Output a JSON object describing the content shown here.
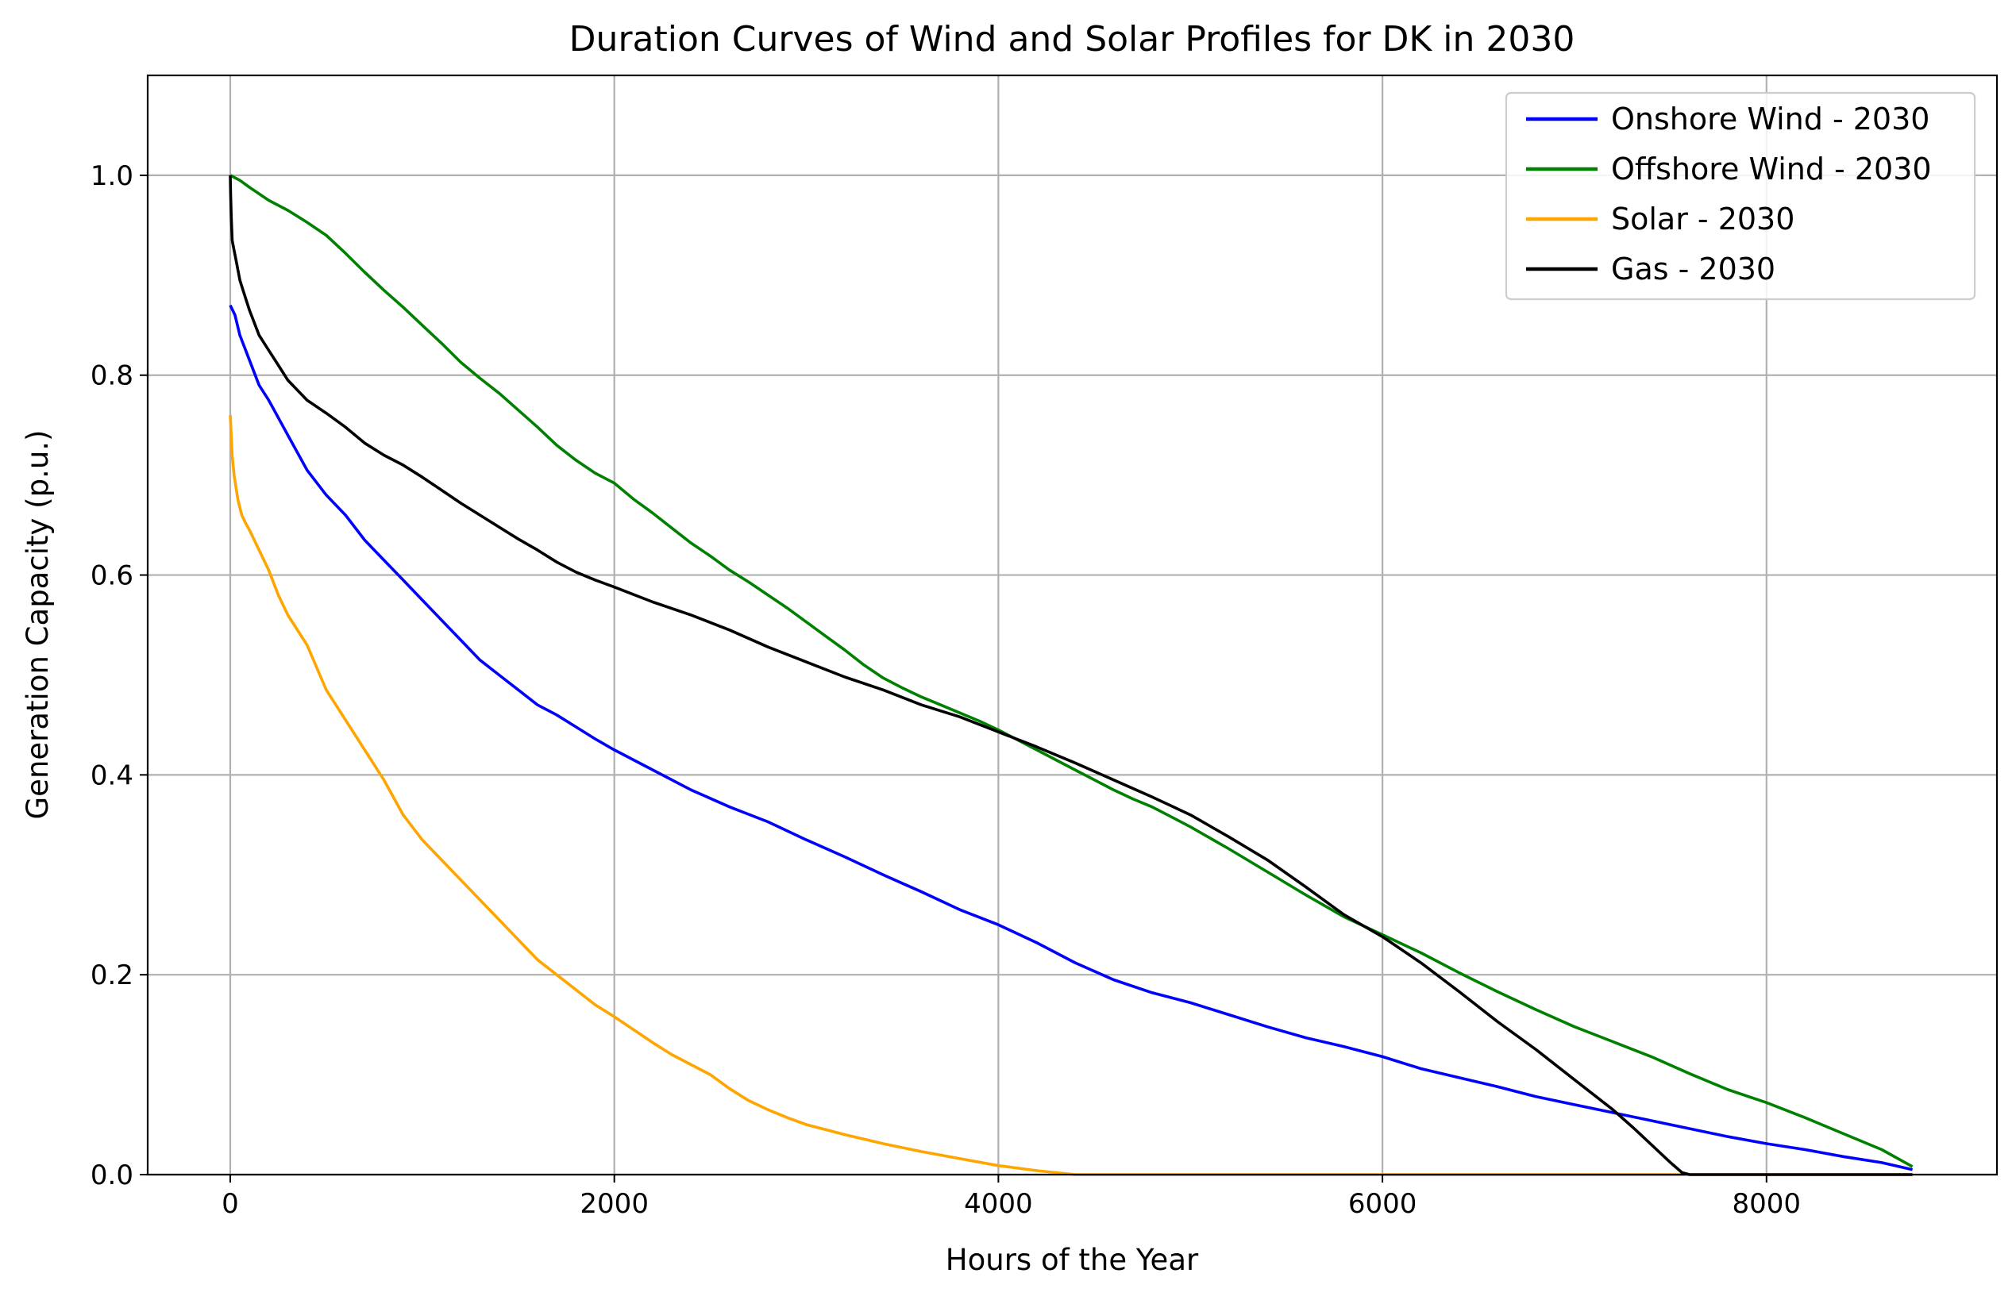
{
  "chart_data": {
    "type": "line",
    "title": "Duration Curves of Wind and Solar Profiles for DK in 2030",
    "xlabel": "Hours of the Year",
    "ylabel": "Generation Capacity (p.u.)",
    "xlim": [
      -430,
      9200
    ],
    "ylim": [
      0,
      1.1
    ],
    "xticks": [
      0,
      2000,
      4000,
      6000,
      8000
    ],
    "xtick_labels": [
      "0",
      "2000",
      "4000",
      "6000",
      "8000"
    ],
    "yticks": [
      0,
      0.2,
      0.4,
      0.6,
      0.8,
      1.0
    ],
    "ytick_labels": [
      "0.0",
      "0.2",
      "0.4",
      "0.6",
      "0.8",
      "1.0"
    ],
    "grid": true,
    "legend_position": "top-right",
    "series": [
      {
        "name": "Onshore Wind - 2030",
        "color": "#0000ff",
        "x": [
          0,
          25,
          50,
          100,
          150,
          200,
          300,
          400,
          500,
          600,
          700,
          800,
          900,
          1000,
          1100,
          1200,
          1300,
          1400,
          1500,
          1600,
          1700,
          1800,
          1900,
          2000,
          2200,
          2400,
          2600,
          2800,
          3000,
          3200,
          3400,
          3600,
          3800,
          4000,
          4200,
          4400,
          4600,
          4800,
          5000,
          5200,
          5400,
          5600,
          5800,
          6000,
          6200,
          6400,
          6600,
          6800,
          7000,
          7200,
          7400,
          7600,
          7800,
          8000,
          8200,
          8400,
          8600,
          8760
        ],
        "y": [
          0.87,
          0.86,
          0.84,
          0.815,
          0.79,
          0.775,
          0.74,
          0.705,
          0.68,
          0.66,
          0.635,
          0.615,
          0.595,
          0.575,
          0.555,
          0.535,
          0.515,
          0.5,
          0.485,
          0.47,
          0.46,
          0.448,
          0.436,
          0.425,
          0.405,
          0.385,
          0.368,
          0.353,
          0.335,
          0.318,
          0.3,
          0.283,
          0.265,
          0.25,
          0.232,
          0.212,
          0.195,
          0.182,
          0.172,
          0.16,
          0.148,
          0.137,
          0.128,
          0.118,
          0.106,
          0.097,
          0.088,
          0.078,
          0.07,
          0.062,
          0.054,
          0.046,
          0.038,
          0.031,
          0.025,
          0.018,
          0.012,
          0.005
        ]
      },
      {
        "name": "Offshore Wind - 2030",
        "color": "#008000",
        "x": [
          0,
          50,
          100,
          200,
          300,
          400,
          500,
          600,
          700,
          800,
          900,
          1000,
          1100,
          1200,
          1300,
          1400,
          1500,
          1600,
          1700,
          1800,
          1900,
          2000,
          2100,
          2200,
          2300,
          2400,
          2500,
          2600,
          2700,
          2800,
          2900,
          3000,
          3100,
          3200,
          3300,
          3400,
          3500,
          3600,
          3700,
          3800,
          3900,
          4000,
          4100,
          4200,
          4300,
          4400,
          4500,
          4600,
          4700,
          4800,
          4900,
          5000,
          5200,
          5400,
          5600,
          5800,
          6000,
          6200,
          6400,
          6600,
          6800,
          7000,
          7200,
          7400,
          7600,
          7800,
          8000,
          8200,
          8400,
          8600,
          8760
        ],
        "y": [
          1.0,
          0.995,
          0.988,
          0.975,
          0.965,
          0.953,
          0.94,
          0.922,
          0.903,
          0.885,
          0.868,
          0.85,
          0.832,
          0.813,
          0.797,
          0.782,
          0.765,
          0.748,
          0.73,
          0.715,
          0.702,
          0.692,
          0.676,
          0.662,
          0.647,
          0.632,
          0.619,
          0.605,
          0.593,
          0.58,
          0.567,
          0.553,
          0.539,
          0.525,
          0.51,
          0.497,
          0.487,
          0.478,
          0.47,
          0.462,
          0.454,
          0.445,
          0.435,
          0.425,
          0.415,
          0.405,
          0.395,
          0.385,
          0.376,
          0.368,
          0.358,
          0.348,
          0.326,
          0.303,
          0.28,
          0.258,
          0.24,
          0.222,
          0.202,
          0.183,
          0.165,
          0.148,
          0.133,
          0.118,
          0.101,
          0.085,
          0.072,
          0.057,
          0.041,
          0.025,
          0.008
        ]
      },
      {
        "name": "Solar - 2030",
        "color": "#ffa500",
        "x": [
          0,
          5,
          10,
          20,
          40,
          60,
          80,
          100,
          150,
          200,
          250,
          300,
          400,
          500,
          600,
          700,
          800,
          900,
          1000,
          1100,
          1200,
          1300,
          1400,
          1500,
          1600,
          1700,
          1800,
          1900,
          2000,
          2100,
          2200,
          2300,
          2400,
          2500,
          2600,
          2700,
          2800,
          2900,
          3000,
          3200,
          3400,
          3600,
          3800,
          4000,
          4200,
          4400,
          5000,
          6000,
          7000,
          8000,
          8760
        ],
        "y": [
          0.76,
          0.74,
          0.72,
          0.7,
          0.675,
          0.66,
          0.652,
          0.645,
          0.625,
          0.605,
          0.58,
          0.56,
          0.53,
          0.485,
          0.455,
          0.425,
          0.395,
          0.36,
          0.335,
          0.315,
          0.295,
          0.275,
          0.255,
          0.235,
          0.215,
          0.2,
          0.185,
          0.17,
          0.158,
          0.145,
          0.132,
          0.12,
          0.11,
          0.1,
          0.086,
          0.074,
          0.065,
          0.057,
          0.05,
          0.04,
          0.031,
          0.023,
          0.016,
          0.009,
          0.004,
          0.0,
          0.0,
          0.0,
          0.0,
          0.0,
          0.0
        ]
      },
      {
        "name": "Gas - 2030",
        "color": "#000000",
        "x": [
          0,
          2,
          5,
          10,
          20,
          30,
          50,
          75,
          100,
          150,
          200,
          250,
          300,
          350,
          400,
          500,
          600,
          700,
          800,
          900,
          1000,
          1100,
          1200,
          1300,
          1400,
          1500,
          1600,
          1700,
          1800,
          1900,
          2000,
          2200,
          2400,
          2600,
          2800,
          3000,
          3200,
          3400,
          3600,
          3800,
          4000,
          4200,
          4400,
          4600,
          4800,
          5000,
          5200,
          5400,
          5600,
          5800,
          6000,
          6200,
          6400,
          6600,
          6800,
          7000,
          7200,
          7300,
          7400,
          7500,
          7560,
          7600,
          7700,
          8000,
          8500,
          8760
        ],
        "y": [
          1.0,
          0.98,
          0.96,
          0.935,
          0.925,
          0.915,
          0.895,
          0.88,
          0.865,
          0.84,
          0.825,
          0.81,
          0.795,
          0.785,
          0.775,
          0.762,
          0.748,
          0.732,
          0.72,
          0.71,
          0.698,
          0.685,
          0.672,
          0.66,
          0.648,
          0.636,
          0.625,
          0.613,
          0.603,
          0.595,
          0.588,
          0.573,
          0.56,
          0.545,
          0.528,
          0.513,
          0.498,
          0.485,
          0.47,
          0.458,
          0.443,
          0.428,
          0.412,
          0.395,
          0.378,
          0.36,
          0.338,
          0.315,
          0.288,
          0.26,
          0.238,
          0.212,
          0.183,
          0.153,
          0.125,
          0.095,
          0.065,
          0.048,
          0.03,
          0.012,
          0.002,
          0.0,
          0.0,
          0.0,
          0.0,
          0.0
        ]
      }
    ]
  }
}
